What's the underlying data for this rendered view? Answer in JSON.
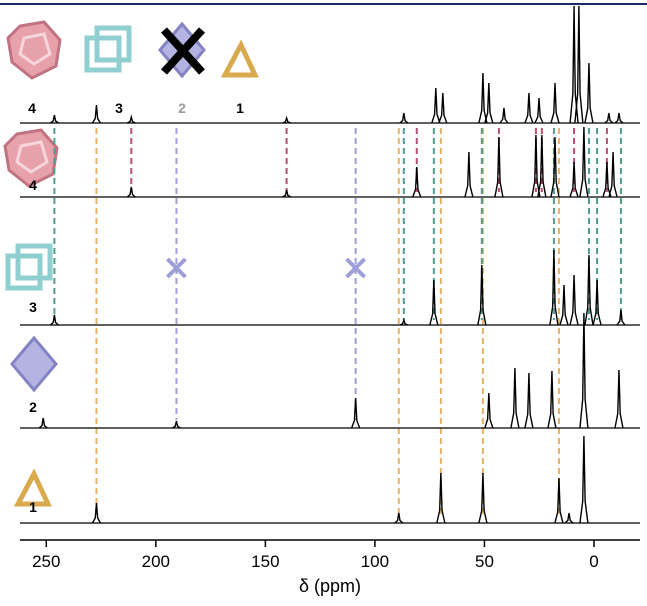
{
  "chart_data": {
    "type": "nmr-stack",
    "x_label": "δ (ppm)",
    "xlim": [
      262,
      -21
    ],
    "xticks": [
      250,
      200,
      150,
      100,
      50,
      0
    ],
    "line_color": "#000000",
    "top_labels": [
      "4",
      "3",
      "2",
      "1"
    ],
    "series": [
      {
        "x": [
          246.3,
          227.1,
          211.2,
          140.3,
          86.8,
          72.2,
          69.0,
          50.7,
          48.0,
          41.1,
          29.7,
          25.1,
          17.8,
          9.1,
          6.9,
          2.3,
          -6.8,
          -11.4
        ],
        "values": [
          8,
          18,
          6,
          5,
          10,
          35,
          30,
          50,
          40,
          15,
          30,
          25,
          40,
          123,
          120,
          60,
          10,
          10
        ]
      },
      {
        "label": "4",
        "x": [
          211.2,
          140.3,
          80.9,
          57.1,
          43.4,
          26.5,
          23.8,
          17.8,
          9.1,
          4.6,
          -5.9,
          -8.7
        ],
        "values": [
          10,
          7,
          30,
          45,
          60,
          62,
          62,
          60,
          35,
          70,
          35,
          45
        ]
      },
      {
        "label": "3",
        "x": [
          246.3,
          86.8,
          73.1,
          51.2,
          18.3,
          13.7,
          9.1,
          2.3,
          -1.4,
          -12.3
        ],
        "values": [
          10,
          5,
          45,
          60,
          75,
          40,
          50,
          70,
          45,
          15
        ]
      },
      {
        "label": "2",
        "x": [
          251.4,
          190.6,
          108.8,
          48.0,
          36.1,
          29.7,
          19.2,
          4.6,
          -11.4
        ],
        "values": [
          10,
          7,
          30,
          35,
          60,
          55,
          57,
          115,
          58
        ]
      },
      {
        "label": "1",
        "x": [
          227.1,
          89.1,
          69.9,
          50.7,
          16.0,
          11.4,
          4.6
        ],
        "values": [
          20,
          10,
          50,
          50,
          45,
          10,
          87
        ]
      }
    ],
    "guides": [
      {
        "color": "#e3b468",
        "x": [
          227.1,
          89.1,
          69.9,
          50.7,
          16.0
        ]
      },
      {
        "color": "#9f9fd8",
        "x": [
          190.6,
          108.8
        ]
      },
      {
        "color": "#4f9c90",
        "x": [
          246.3,
          86.8,
          73.1,
          51.2,
          18.3,
          2.3,
          -1.4,
          -12.3
        ]
      },
      {
        "color": "#b9506c",
        "x": [
          211.2,
          140.3,
          80.9,
          43.4,
          26.5,
          23.8,
          9.1,
          -5.9
        ]
      }
    ]
  }
}
